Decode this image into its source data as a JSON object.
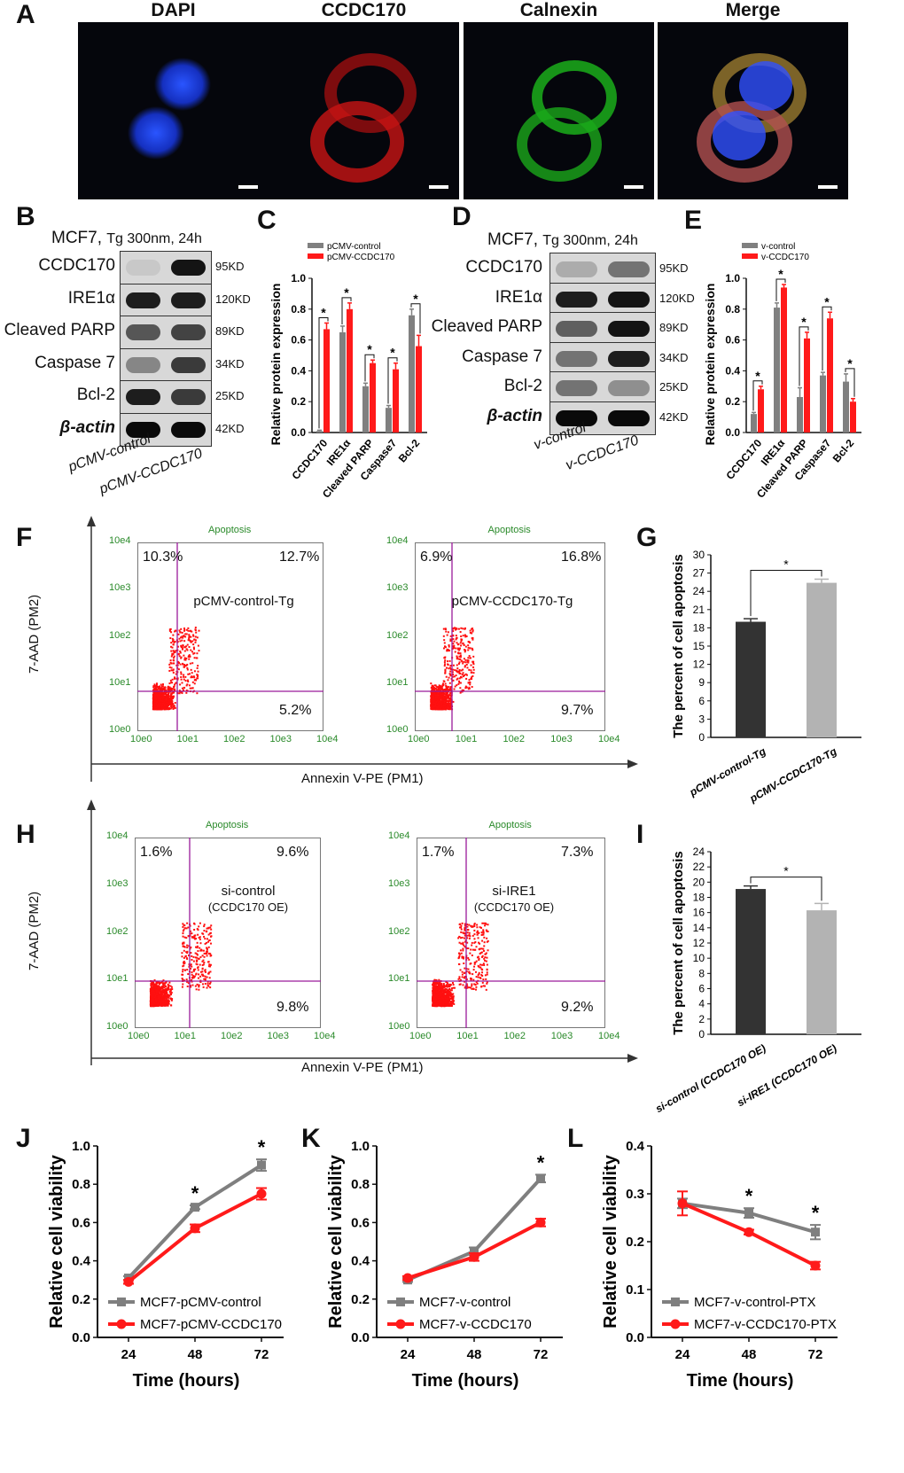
{
  "panels": {
    "A": "A",
    "B": "B",
    "C": "C",
    "D": "D",
    "E": "E",
    "F": "F",
    "G": "G",
    "H": "H",
    "I": "I",
    "J": "J",
    "K": "K",
    "L": "L"
  },
  "panel_a": {
    "titles": [
      "DAPI",
      "CCDC170",
      "Calnexin",
      "Merge"
    ]
  },
  "blot_b": {
    "cell": "MCF7,",
    "treatment": "Tg 300nm, 24h",
    "proteins": [
      "CCDC170",
      "IRE1α",
      "Cleaved PARP",
      "Caspase 7",
      "Bcl-2",
      "β-actin"
    ],
    "sizes": [
      "95KD",
      "120KD",
      "89KD",
      "34KD",
      "25KD",
      "42KD"
    ],
    "lanes": [
      "pCMV-control",
      "pCMV-CCDC170"
    ]
  },
  "blot_d": {
    "cell": "MCF7,",
    "treatment": "Tg 300nm, 24h",
    "proteins": [
      "CCDC170",
      "IRE1α",
      "Cleaved PARP",
      "Caspase 7",
      "Bcl-2",
      "β-actin"
    ],
    "sizes": [
      "95KD",
      "120KD",
      "89KD",
      "34KD",
      "25KD",
      "42KD"
    ],
    "lanes": [
      "v-control",
      "v-CCDC170"
    ]
  },
  "flow_f": {
    "axis_y": "7-AAD (PM2)",
    "axis_x": "Annexin V-PE (PM1)",
    "plot_title": "Apoptosis",
    "ticks": [
      "10e0",
      "10e1",
      "10e2",
      "10e3",
      "10e4"
    ],
    "plots": [
      {
        "label": "pCMV-control-Tg",
        "ul": "10.3%",
        "ur": "12.7%",
        "lr": "5.2%"
      },
      {
        "label": "pCMV-CCDC170-Tg",
        "ul": "6.9%",
        "ur": "16.8%",
        "lr": "9.7%"
      }
    ]
  },
  "flow_h": {
    "axis_y": "7-AAD (PM2)",
    "axis_x": "Annexin V-PE (PM1)",
    "plot_title": "Apoptosis",
    "ticks": [
      "10e0",
      "10e1",
      "10e2",
      "10e3",
      "10e4"
    ],
    "plots": [
      {
        "label": "si-control",
        "sub": "(CCDC170 OE)",
        "ul": "1.6%",
        "ur": "9.6%",
        "lr": "9.8%"
      },
      {
        "label": "si-IRE1",
        "sub": "(CCDC170 OE)",
        "ul": "1.7%",
        "ur": "7.3%",
        "lr": "9.2%"
      }
    ]
  },
  "chart_data": [
    {
      "id": "C",
      "type": "bar",
      "ylabel": "Relative protein expression",
      "categories": [
        "CCDC170",
        "IRE1α",
        "Cleaved PARP",
        "Caspase7",
        "Bcl-2"
      ],
      "ylim": [
        0,
        1.0
      ],
      "yticks": [
        0.0,
        0.2,
        0.4,
        0.6,
        0.8,
        1.0
      ],
      "series": [
        {
          "name": "pCMV-control",
          "color": "#808080",
          "values": [
            0.01,
            0.65,
            0.3,
            0.16,
            0.76
          ],
          "errors": [
            0.005,
            0.04,
            0.02,
            0.015,
            0.04
          ]
        },
        {
          "name": "pCMV-CCDC170",
          "color": "#ff1a1a",
          "values": [
            0.67,
            0.8,
            0.45,
            0.41,
            0.56
          ],
          "errors": [
            0.04,
            0.04,
            0.02,
            0.04,
            0.07
          ]
        }
      ],
      "significance": [
        "*",
        "*",
        "*",
        "*",
        "*"
      ]
    },
    {
      "id": "E",
      "type": "bar",
      "ylabel": "Relative protein expression",
      "categories": [
        "CCDC170",
        "IRE1α",
        "Cleaved PARP",
        "Caspase7",
        "Bcl-2"
      ],
      "ylim": [
        0,
        1.0
      ],
      "yticks": [
        0.0,
        0.2,
        0.4,
        0.6,
        0.8,
        1.0
      ],
      "series": [
        {
          "name": "v-control",
          "color": "#808080",
          "values": [
            0.12,
            0.81,
            0.23,
            0.37,
            0.33
          ],
          "errors": [
            0.01,
            0.03,
            0.06,
            0.02,
            0.05
          ]
        },
        {
          "name": "v-CCDC170",
          "color": "#ff1a1a",
          "values": [
            0.28,
            0.94,
            0.61,
            0.74,
            0.2
          ],
          "errors": [
            0.02,
            0.02,
            0.04,
            0.04,
            0.02
          ]
        }
      ],
      "significance": [
        "*",
        "*",
        "*",
        "*",
        "*"
      ]
    },
    {
      "id": "G",
      "type": "bar",
      "ylabel": "The percent of cell apoptosis",
      "categories": [
        "pCMV-control-Tg",
        "pCMV-CCDC170-Tg"
      ],
      "ylim": [
        0,
        30
      ],
      "yticks": [
        0,
        3,
        6,
        9,
        12,
        15,
        18,
        21,
        24,
        27,
        30
      ],
      "colors": [
        "#333333",
        "#b3b3b3"
      ],
      "values": [
        19.0,
        25.4
      ],
      "errors": [
        0.5,
        0.6
      ],
      "significance": "*"
    },
    {
      "id": "I",
      "type": "bar",
      "ylabel": "The percent of cell apoptosis",
      "categories": [
        "si-control (CCDC170 OE)",
        "si-IRE1 (CCDC170 OE)"
      ],
      "ylim": [
        0,
        24
      ],
      "yticks": [
        0,
        2,
        4,
        6,
        8,
        10,
        12,
        14,
        16,
        18,
        20,
        22,
        24
      ],
      "colors": [
        "#333333",
        "#b3b3b3"
      ],
      "values": [
        19.1,
        16.3
      ],
      "errors": [
        0.4,
        0.9
      ],
      "significance": "*"
    },
    {
      "id": "J",
      "type": "line",
      "xlabel": "Time (hours)",
      "ylabel": "Relative cell viability",
      "x": [
        24,
        48,
        72
      ],
      "ylim": [
        0,
        1.0
      ],
      "yticks": [
        0.0,
        0.2,
        0.4,
        0.6,
        0.8,
        1.0
      ],
      "series": [
        {
          "name": "MCF7-pCMV-control",
          "color": "#7f7f7f",
          "marker": "square",
          "values": [
            0.31,
            0.68,
            0.9
          ],
          "errors": [
            0.01,
            0.01,
            0.03
          ]
        },
        {
          "name": "MCF7-pCMV-CCDC170",
          "color": "#ff1a1a",
          "marker": "circle",
          "values": [
            0.29,
            0.57,
            0.75
          ],
          "errors": [
            0.01,
            0.02,
            0.03
          ]
        }
      ],
      "significance": [
        "",
        "*",
        "*"
      ]
    },
    {
      "id": "K",
      "type": "line",
      "xlabel": "Time (hours)",
      "ylabel": "Relative cell viability",
      "x": [
        24,
        48,
        72
      ],
      "ylim": [
        0,
        1.0
      ],
      "yticks": [
        0.0,
        0.2,
        0.4,
        0.6,
        0.8,
        1.0
      ],
      "series": [
        {
          "name": "MCF7-v-control",
          "color": "#7f7f7f",
          "marker": "square",
          "values": [
            0.3,
            0.45,
            0.83
          ],
          "errors": [
            0.01,
            0.02,
            0.02
          ]
        },
        {
          "name": "MCF7-v-CCDC170",
          "color": "#ff1a1a",
          "marker": "circle",
          "values": [
            0.31,
            0.42,
            0.6
          ],
          "errors": [
            0.01,
            0.02,
            0.02
          ]
        }
      ],
      "significance": [
        "",
        "",
        "*"
      ]
    },
    {
      "id": "L",
      "type": "line",
      "xlabel": "Time (hours)",
      "ylabel": "Relative cell viability",
      "x": [
        24,
        48,
        72
      ],
      "ylim": [
        0,
        0.4
      ],
      "yticks": [
        0.0,
        0.1,
        0.2,
        0.3,
        0.4
      ],
      "series": [
        {
          "name": "MCF7-v-control-PTX",
          "color": "#7f7f7f",
          "marker": "square",
          "values": [
            0.28,
            0.26,
            0.22
          ],
          "errors": [
            0.01,
            0.01,
            0.015
          ]
        },
        {
          "name": "MCF7-v-CCDC170-PTX",
          "color": "#ff1a1a",
          "marker": "circle",
          "values": [
            0.28,
            0.22,
            0.15
          ],
          "errors": [
            0.025,
            0.005,
            0.008
          ]
        }
      ],
      "significance": [
        "",
        "*",
        "*"
      ]
    }
  ]
}
